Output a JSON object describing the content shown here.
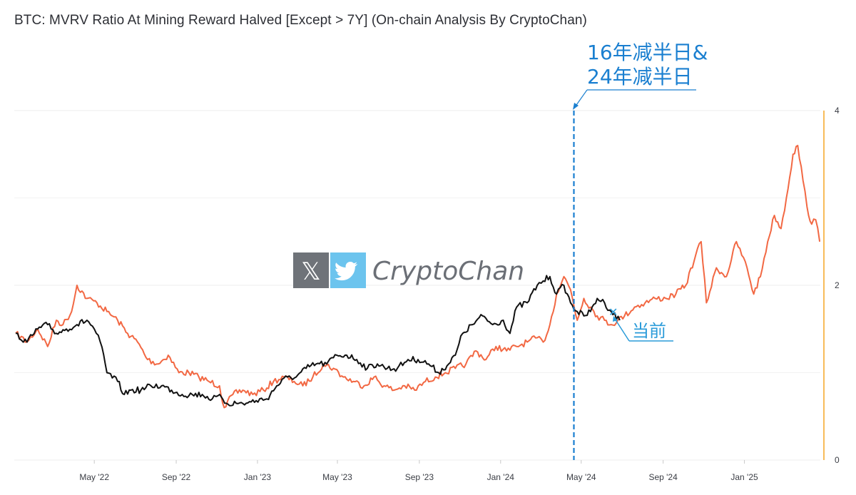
{
  "title": "BTC: MVRV Ratio At Mining Reward Halved [Except > 7Y] (On-chain Analysis By CryptoChan)",
  "watermark": {
    "text": "CryptoChan",
    "icons": [
      "x-logo-icon",
      "twitter-bird-icon"
    ]
  },
  "annotations": {
    "halving_line1": "16年减半日&",
    "halving_line2": "24年减半日",
    "current": "当前"
  },
  "colors": {
    "series_2016": "#f26843",
    "series_2024": "#111111",
    "halving_line": "#1a7fd0",
    "current": "#2a9bd9",
    "right_axis": "#f5a623",
    "grid": "#ececec"
  },
  "chart_data": {
    "type": "line",
    "title": "BTC: MVRV Ratio At Mining Reward Halved [Except > 7Y] (On-chain Analysis By CryptoChan)",
    "xlabel": "",
    "ylabel": "",
    "x_ticks": [
      "May '22",
      "Sep '22",
      "Jan '23",
      "May '23",
      "Sep '23",
      "Jan '24",
      "May '24",
      "Sep '24",
      "Jan '25"
    ],
    "x_tick_dates": [
      "2022-05-01",
      "2022-09-01",
      "2023-01-01",
      "2023-05-01",
      "2023-09-01",
      "2024-01-01",
      "2024-05-01",
      "2024-09-01",
      "2025-01-01"
    ],
    "xlim": [
      "2022-01-03",
      "2025-04-25"
    ],
    "y_ticks": [
      "0",
      "2",
      "4"
    ],
    "ylim": [
      0,
      4
    ],
    "grid": true,
    "halving_date": "2024-04-20",
    "series": [
      {
        "x": [
          "2022-01-03",
          "2022-01-20",
          "2022-02-05",
          "2022-02-20",
          "2022-03-05",
          "2022-03-15",
          "2022-03-28",
          "2022-04-05",
          "2022-04-20",
          "2022-05-05",
          "2022-05-20",
          "2022-06-05",
          "2022-06-20",
          "2022-07-05",
          "2022-07-20",
          "2022-08-05",
          "2022-08-20",
          "2022-09-05",
          "2022-09-20",
          "2022-10-05",
          "2022-10-20",
          "2022-11-05",
          "2022-11-12",
          "2022-11-25",
          "2022-12-10",
          "2022-12-25",
          "2023-01-10",
          "2023-01-25",
          "2023-02-10",
          "2023-02-25",
          "2023-03-10",
          "2023-03-25",
          "2023-04-10",
          "2023-04-25",
          "2023-05-10",
          "2023-05-25",
          "2023-06-10",
          "2023-06-25",
          "2023-07-10",
          "2023-07-25",
          "2023-08-10",
          "2023-08-25",
          "2023-09-10",
          "2023-09-25",
          "2023-10-10",
          "2023-10-25",
          "2023-11-10",
          "2023-11-25",
          "2023-12-10",
          "2023-12-25",
          "2024-01-10",
          "2024-01-25",
          "2024-02-10",
          "2024-02-25",
          "2024-03-05",
          "2024-03-15",
          "2024-03-25",
          "2024-04-05",
          "2024-04-15",
          "2024-04-25",
          "2024-05-05",
          "2024-05-15",
          "2024-05-25",
          "2024-06-05",
          "2024-06-15",
          "2024-06-25",
          "2024-07-05",
          "2024-07-20",
          "2024-08-05",
          "2024-08-20",
          "2024-09-05",
          "2024-09-20",
          "2024-10-05",
          "2024-10-20",
          "2024-10-28",
          "2024-11-05",
          "2024-11-20",
          "2024-12-05",
          "2024-12-20",
          "2025-01-05",
          "2025-01-15",
          "2025-01-25",
          "2025-02-05",
          "2025-02-15",
          "2025-02-25",
          "2025-03-05",
          "2025-03-15",
          "2025-03-22",
          "2025-03-30",
          "2025-04-05",
          "2025-04-12",
          "2025-04-18",
          "2025-04-24"
        ],
        "y": [
          1.45,
          1.35,
          1.5,
          1.3,
          1.6,
          1.55,
          1.7,
          2.0,
          1.85,
          1.8,
          1.7,
          1.6,
          1.45,
          1.35,
          1.15,
          1.1,
          1.2,
          1.0,
          1.0,
          0.95,
          0.9,
          0.85,
          0.6,
          0.75,
          0.8,
          0.75,
          0.8,
          0.9,
          0.95,
          0.9,
          0.85,
          0.95,
          1.1,
          1.05,
          0.95,
          0.9,
          0.85,
          0.95,
          0.85,
          0.8,
          0.85,
          0.8,
          0.9,
          0.95,
          1.0,
          1.05,
          1.1,
          1.25,
          1.15,
          1.3,
          1.25,
          1.3,
          1.35,
          1.4,
          1.35,
          1.55,
          1.9,
          2.1,
          1.95,
          1.6,
          1.85,
          1.75,
          1.65,
          1.6,
          1.55,
          1.6,
          1.65,
          1.75,
          1.8,
          1.85,
          1.85,
          1.9,
          2.0,
          2.35,
          2.5,
          1.8,
          2.2,
          2.1,
          2.5,
          2.2,
          1.9,
          2.1,
          2.5,
          2.8,
          2.65,
          3.0,
          3.5,
          3.6,
          3.2,
          2.9,
          2.7,
          2.75,
          2.5
        ],
        "color": "#f26843"
      },
      {
        "x": [
          "2022-01-03",
          "2022-01-20",
          "2022-02-05",
          "2022-02-20",
          "2022-03-05",
          "2022-03-20",
          "2022-04-05",
          "2022-04-20",
          "2022-05-01",
          "2022-05-10",
          "2022-05-20",
          "2022-06-05",
          "2022-06-15",
          "2022-06-25",
          "2022-07-10",
          "2022-07-25",
          "2022-08-10",
          "2022-08-25",
          "2022-09-10",
          "2022-09-25",
          "2022-10-10",
          "2022-10-25",
          "2022-11-08",
          "2022-11-15",
          "2022-11-30",
          "2022-12-15",
          "2022-12-30",
          "2023-01-15",
          "2023-01-30",
          "2023-02-15",
          "2023-02-28",
          "2023-03-15",
          "2023-03-30",
          "2023-04-15",
          "2023-04-30",
          "2023-05-15",
          "2023-05-30",
          "2023-06-15",
          "2023-06-30",
          "2023-07-15",
          "2023-07-30",
          "2023-08-15",
          "2023-08-30",
          "2023-09-15",
          "2023-09-30",
          "2023-10-15",
          "2023-10-25",
          "2023-11-05",
          "2023-11-20",
          "2023-12-05",
          "2023-12-20",
          "2024-01-05",
          "2024-01-15",
          "2024-01-25",
          "2024-02-10",
          "2024-02-25",
          "2024-03-05",
          "2024-03-15",
          "2024-03-25",
          "2024-04-05",
          "2024-04-15",
          "2024-04-25",
          "2024-05-05",
          "2024-05-15",
          "2024-05-25",
          "2024-06-05",
          "2024-06-15",
          "2024-06-28"
        ],
        "y": [
          1.45,
          1.35,
          1.5,
          1.55,
          1.45,
          1.5,
          1.55,
          1.6,
          1.5,
          1.35,
          1.0,
          0.9,
          0.75,
          0.8,
          0.8,
          0.85,
          0.85,
          0.8,
          0.75,
          0.75,
          0.75,
          0.7,
          0.72,
          0.65,
          0.65,
          0.65,
          0.68,
          0.7,
          0.85,
          0.95,
          0.95,
          1.05,
          1.1,
          1.1,
          1.2,
          1.2,
          1.15,
          1.05,
          1.1,
          1.05,
          1.05,
          1.15,
          1.15,
          1.1,
          1.0,
          1.1,
          1.2,
          1.45,
          1.55,
          1.65,
          1.55,
          1.6,
          1.45,
          1.75,
          1.8,
          2.0,
          2.05,
          2.1,
          1.9,
          2.0,
          1.8,
          1.7,
          1.65,
          1.7,
          1.85,
          1.8,
          1.7,
          1.6
        ],
        "color": "#111111"
      }
    ]
  }
}
